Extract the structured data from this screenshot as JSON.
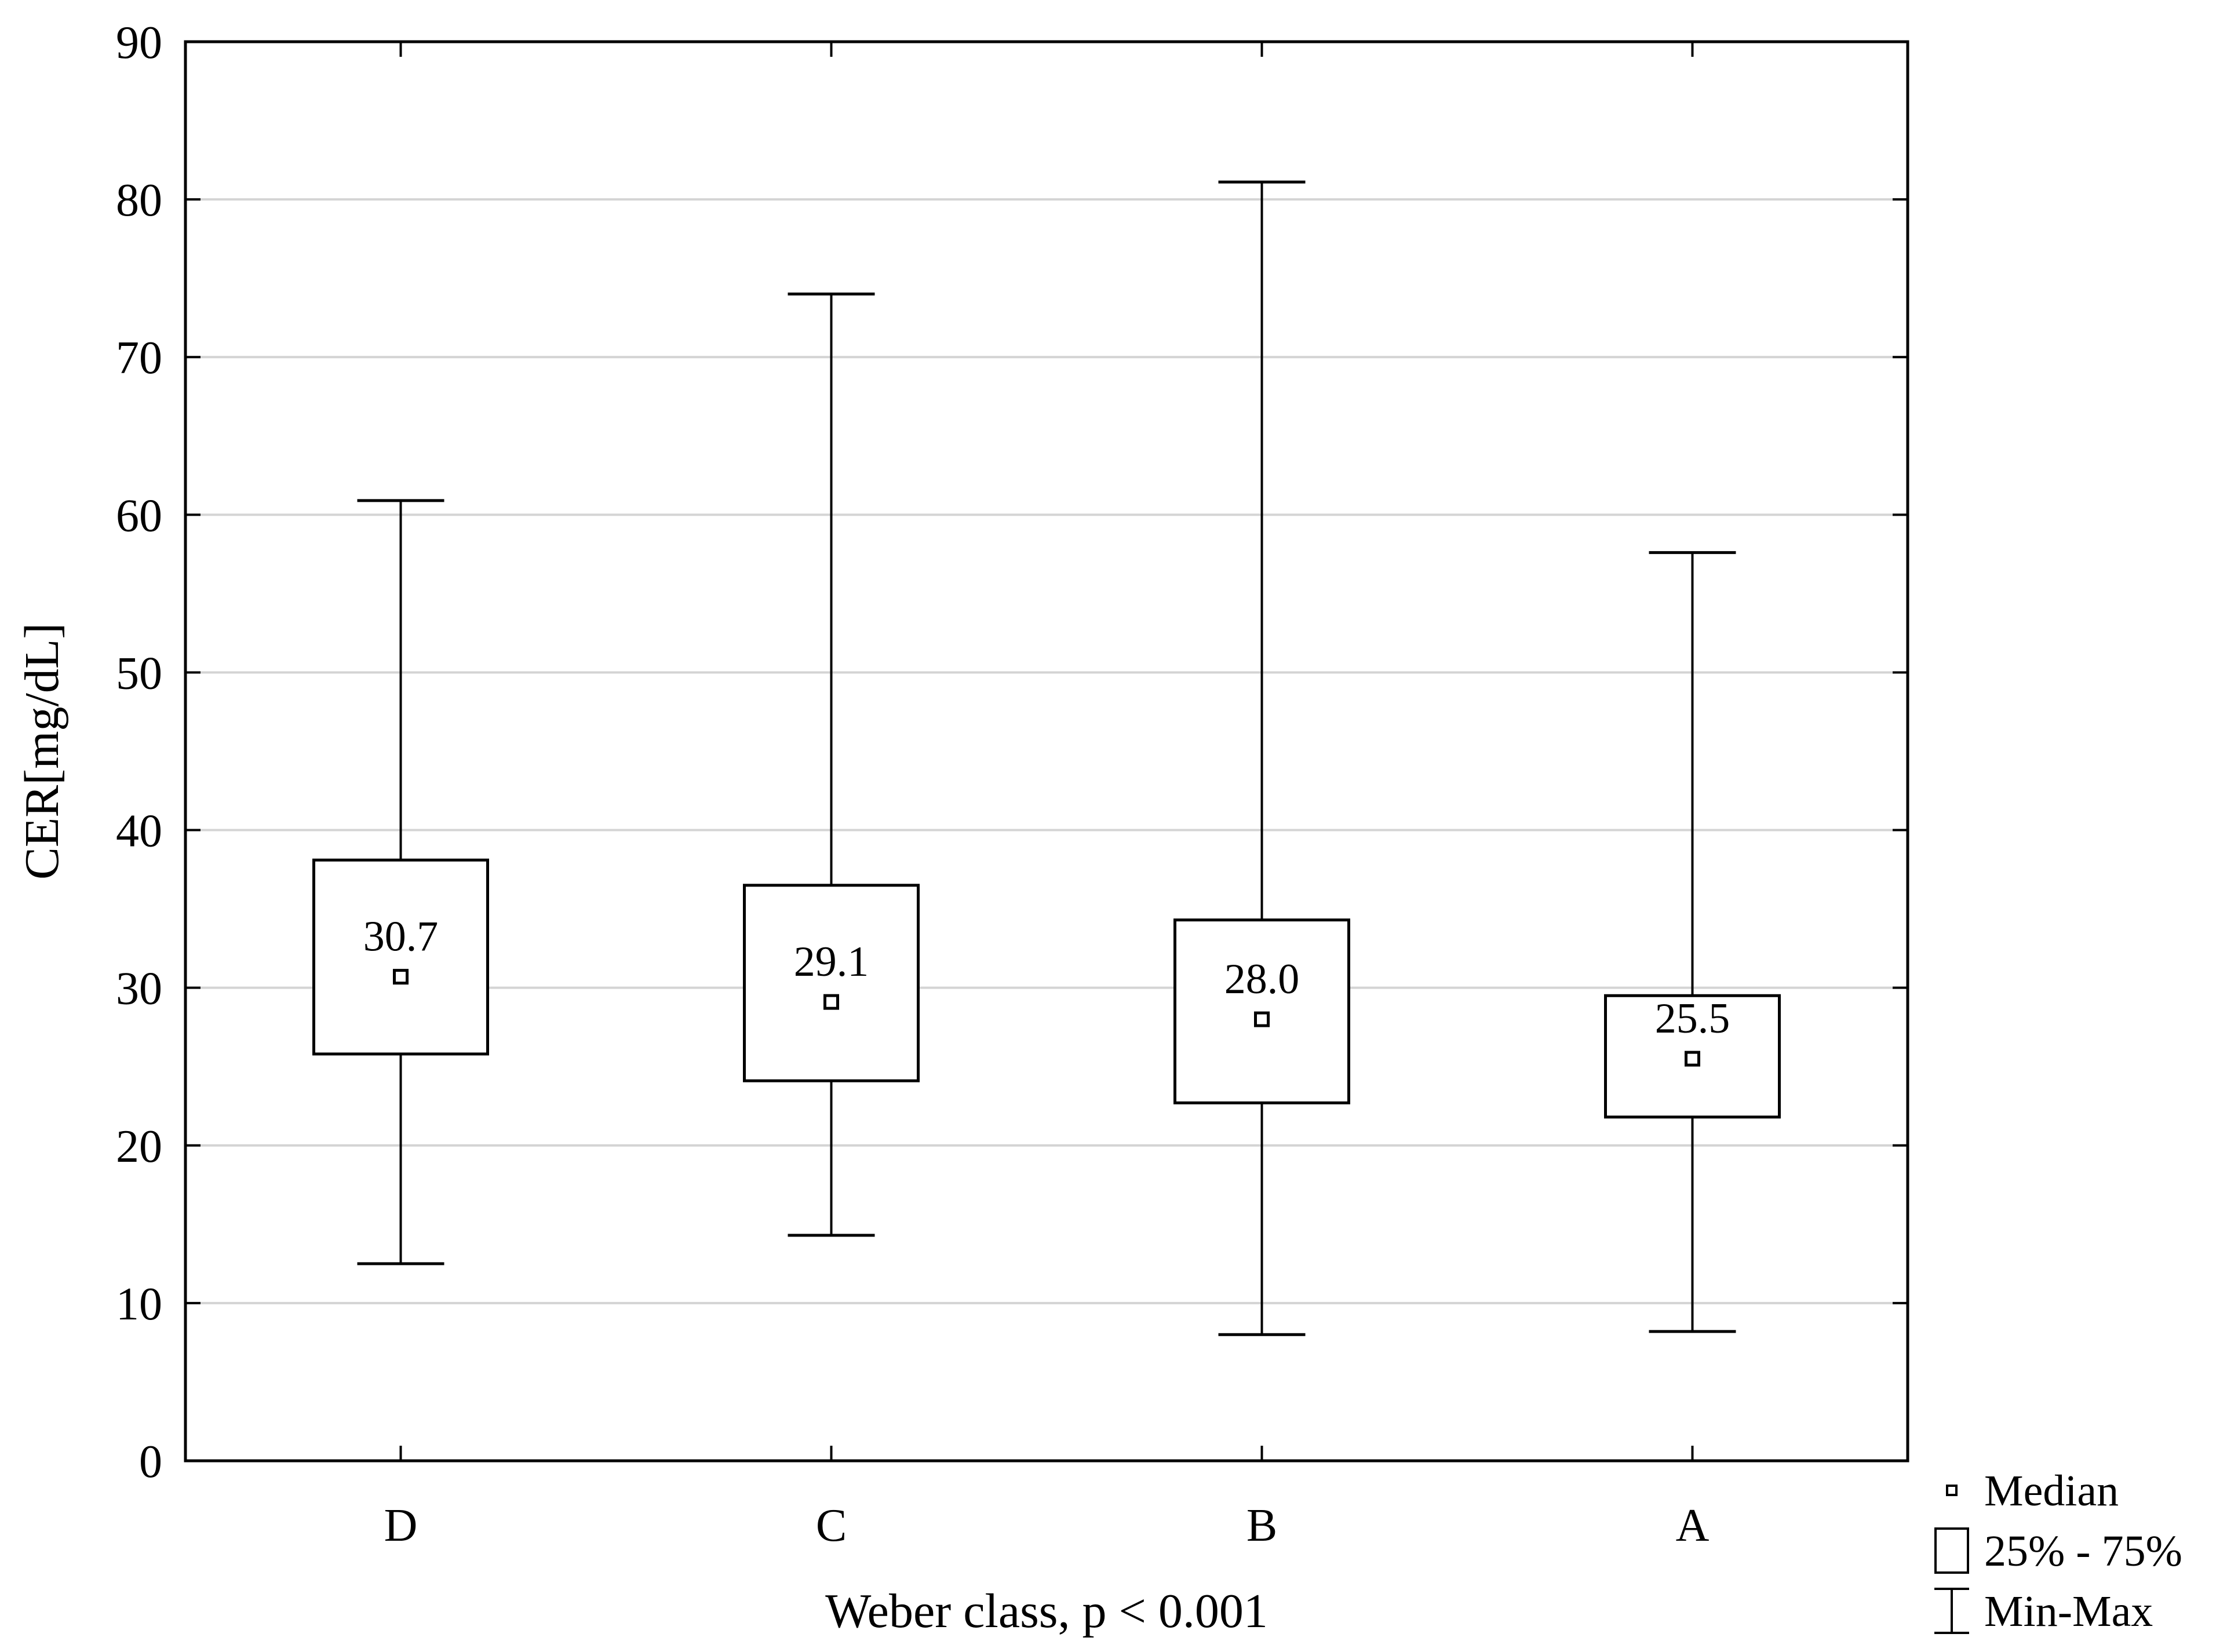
{
  "chart_data": {
    "type": "box",
    "title": "",
    "xlabel": "Weber class, p < 0.001",
    "ylabel": "CER[mg/dL]",
    "ylim": [
      0,
      90
    ],
    "yticks": [
      "0",
      "10",
      "20",
      "30",
      "40",
      "50",
      "60",
      "70",
      "80",
      "90"
    ],
    "grid": "horizontal",
    "legend_position": "bottom-right",
    "categories": [
      "D",
      "C",
      "B",
      "A"
    ],
    "boxes": [
      {
        "category": "D",
        "min": 12.5,
        "q1": 25.8,
        "median": 30.7,
        "q3": 38.1,
        "max": 60.9,
        "median_label": "30.7"
      },
      {
        "category": "C",
        "min": 14.3,
        "q1": 24.1,
        "median": 29.1,
        "q3": 36.5,
        "max": 74.0,
        "median_label": "29.1"
      },
      {
        "category": "B",
        "min": 8.0,
        "q1": 22.7,
        "median": 28.0,
        "q3": 34.3,
        "max": 81.1,
        "median_label": "28.0"
      },
      {
        "category": "A",
        "min": 8.2,
        "q1": 21.8,
        "median": 25.5,
        "q3": 29.5,
        "max": 57.6,
        "median_label": "25.5"
      }
    ],
    "legend": [
      {
        "symbol": "median",
        "label": "Median"
      },
      {
        "symbol": "box",
        "label": "25% - 75%"
      },
      {
        "symbol": "whisker",
        "label": "Min-Max"
      }
    ],
    "colors": {
      "stroke": "#000000",
      "grid": "#d4d4d4",
      "background": "#ffffff"
    }
  }
}
